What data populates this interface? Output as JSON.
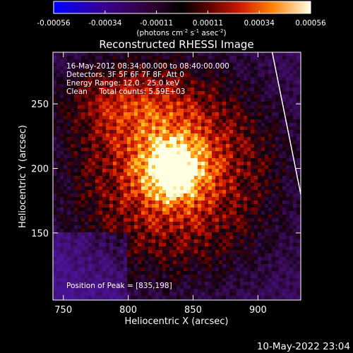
{
  "chart_data": {
    "type": "heatmap",
    "title": "Reconstructed RHESSI Image",
    "xlabel": "Heliocentric X (arcsec)",
    "ylabel": "Heliocentric Y (arcsec)",
    "xlim": [
      742,
      933
    ],
    "ylim": [
      98,
      290
    ],
    "xticks": [
      750,
      800,
      850,
      900
    ],
    "yticks": [
      150,
      200,
      250
    ],
    "colorbar": {
      "ticks": [
        "-0.00056",
        "-0.00034",
        "-0.00011",
        "0.00011",
        "0.00034",
        "0.00056"
      ],
      "unit_text": "(photons cm",
      "unit_sup1": "-2",
      "unit_mid": " s",
      "unit_sup2": "-1",
      "unit_mid2": " asec",
      "unit_sup3": "-2",
      "unit_close": ")"
    },
    "info": {
      "time": "16-May-2012 08:34:00.000 to 08:40:00.000",
      "detectors": "Detectors: 3F 5F 6F 7F 8F, Att 0",
      "energy": "Energy Range: 12.0 - 25.0 keV",
      "clean": "Clean     Total counts: 5.59E+03"
    },
    "peak_label": "Position of Peak = [835,198]",
    "peak": [
      835,
      198
    ],
    "limb_line": [
      [
        911,
        290
      ],
      [
        933,
        180
      ]
    ]
  },
  "footer_date": "10-May-2022 23:04"
}
